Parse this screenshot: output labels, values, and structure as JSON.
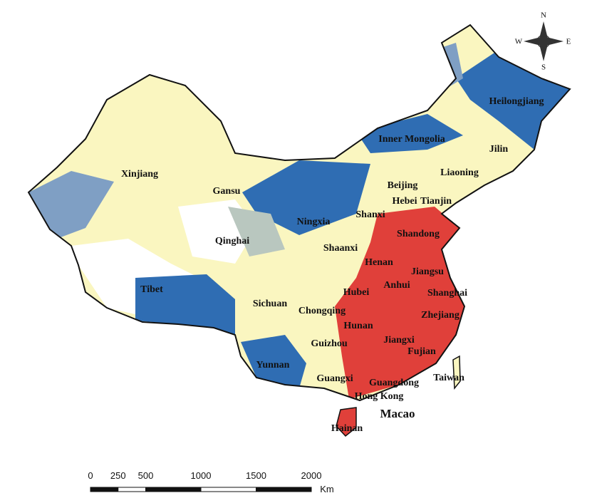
{
  "map": {
    "provinces": [
      "Heilongjiang",
      "Inner Mongolia",
      "Jilin",
      "Xinjiang",
      "Liaoning",
      "Gansu",
      "Beijing",
      "Tianjin",
      "Hebei",
      "Shanxi",
      "Ningxia",
      "Shandong",
      "Qinghai",
      "Shaanxi",
      "Henan",
      "Jiangsu",
      "Anhui",
      "Shanghai",
      "Tibet",
      "Hubei",
      "Sichuan",
      "Chongqing",
      "Zhejiang",
      "Hunan",
      "Jiangxi",
      "Guizhou",
      "Fujian",
      "Yunnan",
      "Taiwan",
      "Guangxi",
      "Guangdong",
      "Hong Kong",
      "Macao",
      "Hainan"
    ],
    "compass": {
      "north": "N",
      "east": "E",
      "south": "S",
      "west": "W"
    },
    "scale_bar": {
      "ticks": [
        0,
        250,
        500,
        1000,
        1500,
        2000
      ],
      "unit": "Km"
    }
  }
}
